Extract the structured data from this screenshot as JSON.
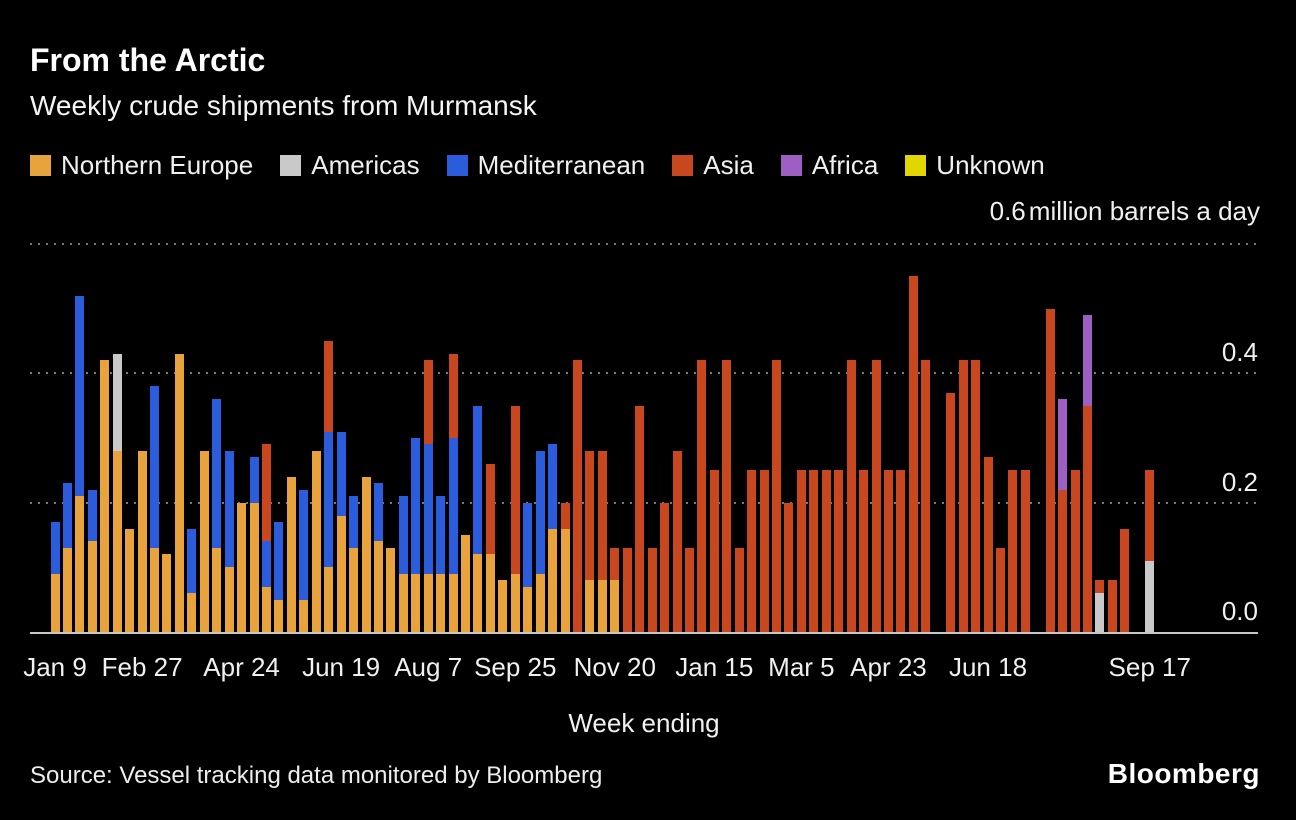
{
  "header": {
    "title": "From the Arctic",
    "subtitle": "Weekly crude shipments from Murmansk"
  },
  "footer": {
    "source": "Source: Vessel tracking data monitored by Bloomberg",
    "logo": "Bloomberg"
  },
  "chart_data": {
    "type": "bar",
    "stacked": true,
    "title": "From the Arctic",
    "subtitle": "Weekly crude shipments from Murmansk",
    "x_axis_title": "Week ending",
    "ymax_label": "0.6",
    "unit_text": "million barrels a day",
    "ylim": [
      0,
      0.6
    ],
    "yticks": [
      0,
      0.2,
      0.4
    ],
    "grid": "dotted-horizontal",
    "legend_position": "top",
    "n_weeks": 89,
    "xticks": [
      {
        "week": 1,
        "label": "Jan 9"
      },
      {
        "week": 8,
        "label": "Feb 27"
      },
      {
        "week": 16,
        "label": "Apr 24"
      },
      {
        "week": 24,
        "label": "Jun 19"
      },
      {
        "week": 31,
        "label": "Aug 7"
      },
      {
        "week": 38,
        "label": "Sep 25"
      },
      {
        "week": 46,
        "label": "Nov 20"
      },
      {
        "week": 54,
        "label": "Jan 15"
      },
      {
        "week": 61,
        "label": "Mar 5"
      },
      {
        "week": 68,
        "label": "Apr 23"
      },
      {
        "week": 76,
        "label": "Jun 18"
      },
      {
        "week": 89,
        "label": "Sep 17"
      }
    ],
    "series": [
      {
        "name": "Northern Europe",
        "color": "#E8A33D",
        "values": [
          0.09,
          0.13,
          0.21,
          0.14,
          0.42,
          0.28,
          0.16,
          0.28,
          0.13,
          0.12,
          0.43,
          0.06,
          0.28,
          0.13,
          0.1,
          0.2,
          0.2,
          0.07,
          0.05,
          0.24,
          0.05,
          0.28,
          0.1,
          0.18,
          0.13,
          0.24,
          0.14,
          0.13,
          0.09,
          0.09,
          0.09,
          0.09,
          0.09,
          0.15,
          0.12,
          0.12,
          0.08,
          0.09,
          0.07,
          0.09,
          0.16,
          0.16,
          0,
          0.08,
          0.08,
          0.08,
          0,
          0,
          0,
          0,
          0,
          0,
          0,
          0,
          0,
          0,
          0,
          0,
          0,
          0,
          0,
          0,
          0,
          0,
          0,
          0,
          0,
          0,
          0,
          0,
          0,
          0,
          0,
          0,
          0,
          0,
          0,
          0,
          0,
          0,
          0,
          0,
          0,
          0,
          0,
          0,
          0,
          0,
          0
        ]
      },
      {
        "name": "Americas",
        "color": "#C9C9C9",
        "values": [
          0,
          0,
          0,
          0,
          0,
          0.15,
          0,
          0,
          0,
          0,
          0,
          0,
          0,
          0,
          0,
          0,
          0,
          0,
          0,
          0,
          0,
          0,
          0,
          0,
          0,
          0,
          0,
          0,
          0,
          0,
          0,
          0,
          0,
          0,
          0,
          0,
          0,
          0,
          0,
          0,
          0,
          0,
          0,
          0,
          0,
          0,
          0,
          0,
          0,
          0,
          0,
          0,
          0,
          0,
          0,
          0,
          0,
          0,
          0,
          0,
          0,
          0,
          0,
          0,
          0,
          0,
          0,
          0,
          0,
          0,
          0,
          0,
          0,
          0,
          0,
          0,
          0,
          0,
          0,
          0,
          0,
          0,
          0,
          0,
          0.06,
          0,
          0,
          0,
          0.11
        ]
      },
      {
        "name": "Mediterranean",
        "color": "#2A5CDB",
        "values": [
          0.08,
          0.1,
          0.31,
          0.08,
          0,
          0,
          0,
          0,
          0.25,
          0,
          0,
          0.1,
          0,
          0.23,
          0.18,
          0,
          0.07,
          0.07,
          0.12,
          0,
          0.17,
          0,
          0.21,
          0.13,
          0.08,
          0,
          0.09,
          0,
          0.12,
          0.21,
          0.2,
          0.12,
          0.21,
          0,
          0.23,
          0,
          0,
          0,
          0.13,
          0.19,
          0.13,
          0,
          0,
          0,
          0,
          0,
          0,
          0,
          0,
          0,
          0,
          0,
          0,
          0,
          0,
          0,
          0,
          0,
          0,
          0,
          0,
          0,
          0,
          0,
          0,
          0,
          0,
          0,
          0,
          0,
          0,
          0,
          0,
          0,
          0,
          0,
          0,
          0,
          0,
          0,
          0,
          0,
          0,
          0,
          0,
          0,
          0,
          0,
          0
        ]
      },
      {
        "name": "Asia",
        "color": "#C8471E",
        "values": [
          0,
          0,
          0,
          0,
          0,
          0,
          0,
          0,
          0,
          0,
          0,
          0,
          0,
          0,
          0,
          0,
          0,
          0.15,
          0,
          0,
          0,
          0,
          0.14,
          0,
          0,
          0,
          0,
          0,
          0,
          0,
          0.13,
          0,
          0.13,
          0,
          0,
          0.14,
          0,
          0.26,
          0,
          0,
          0,
          0.04,
          0.42,
          0.2,
          0.2,
          0.05,
          0.13,
          0.35,
          0.13,
          0.2,
          0.28,
          0.13,
          0.42,
          0.25,
          0.42,
          0.13,
          0.25,
          0.25,
          0.42,
          0.2,
          0.25,
          0.25,
          0.25,
          0.25,
          0.42,
          0.25,
          0.42,
          0.25,
          0.25,
          0.55,
          0.42,
          0,
          0.37,
          0.42,
          0.42,
          0.27,
          0.13,
          0.25,
          0.25,
          0,
          0.5,
          0.22,
          0.25,
          0.35,
          0.02,
          0.08,
          0.16,
          0,
          0.14
        ]
      },
      {
        "name": "Africa",
        "color": "#9E5FC5",
        "values": [
          0,
          0,
          0,
          0,
          0,
          0,
          0,
          0,
          0,
          0,
          0,
          0,
          0,
          0,
          0,
          0,
          0,
          0,
          0,
          0,
          0,
          0,
          0,
          0,
          0,
          0,
          0,
          0,
          0,
          0,
          0,
          0,
          0,
          0,
          0,
          0,
          0,
          0,
          0,
          0,
          0,
          0,
          0,
          0,
          0,
          0,
          0,
          0,
          0,
          0,
          0,
          0,
          0,
          0,
          0,
          0,
          0,
          0,
          0,
          0,
          0,
          0,
          0,
          0,
          0,
          0,
          0,
          0,
          0,
          0,
          0,
          0,
          0,
          0,
          0,
          0,
          0,
          0,
          0,
          0,
          0,
          0.14,
          0,
          0.14,
          0,
          0,
          0,
          0,
          0
        ]
      },
      {
        "name": "Unknown",
        "color": "#E3D500",
        "values": [
          0,
          0,
          0,
          0,
          0,
          0,
          0,
          0,
          0,
          0,
          0,
          0,
          0,
          0,
          0,
          0,
          0,
          0,
          0,
          0,
          0,
          0,
          0,
          0,
          0,
          0,
          0,
          0,
          0,
          0,
          0,
          0,
          0,
          0,
          0,
          0,
          0,
          0,
          0,
          0,
          0,
          0,
          0,
          0,
          0,
          0,
          0,
          0,
          0,
          0,
          0,
          0,
          0,
          0,
          0,
          0,
          0,
          0,
          0,
          0,
          0,
          0,
          0,
          0,
          0,
          0,
          0,
          0,
          0,
          0,
          0,
          0,
          0,
          0,
          0,
          0,
          0,
          0,
          0,
          0,
          0,
          0,
          0,
          0,
          0,
          0,
          0,
          0,
          0
        ]
      }
    ]
  }
}
